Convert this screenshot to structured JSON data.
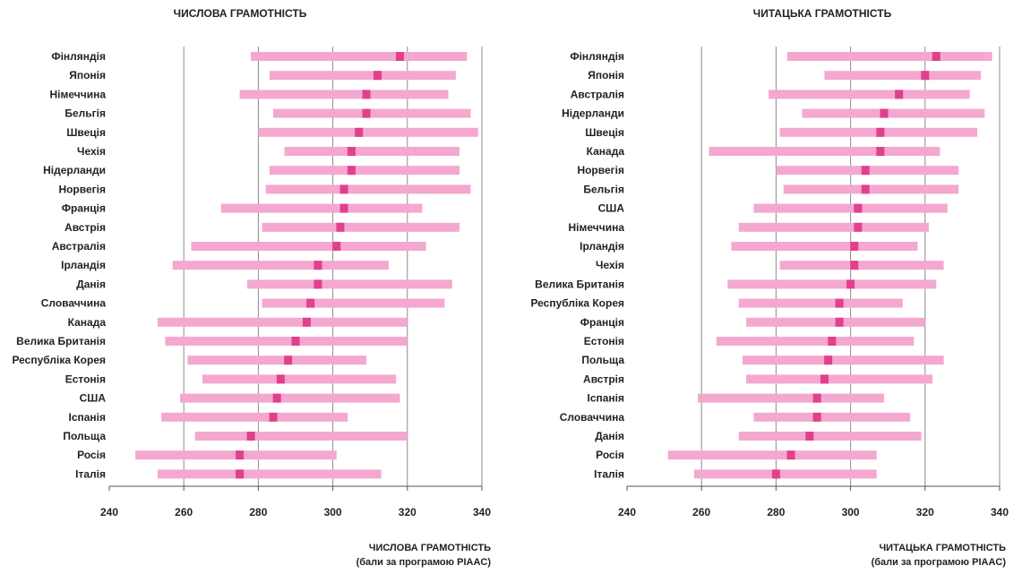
{
  "colors": {
    "range_bar": "#f4a8cf",
    "mean_marker": "#e0408f",
    "grid": "#8c8c8c",
    "axis": "#555555",
    "text": "#222222"
  },
  "chart_data": [
    {
      "type": "bar",
      "orientation": "horizontal",
      "title": "ЧИСЛОВА ГРАМОТНІСТЬ",
      "xlabel": "ЧИСЛОВА ГРАМОТНІСТЬ",
      "xlabel_sub": "(бали за програмою PIAAC)",
      "xlim": [
        240,
        340
      ],
      "xticks": [
        240,
        260,
        280,
        300,
        320,
        340
      ],
      "grid": true,
      "categories": [
        "Фінляндія",
        "Японія",
        "Німеччина",
        "Бельгія",
        "Швеція",
        "Чехія",
        "Нідерланди",
        "Норвегія",
        "Франція",
        "Австрія",
        "Австралія",
        "Ірландія",
        "Данія",
        "Словаччина",
        "Канада",
        "Велика Британія",
        "Республіка Корея",
        "Естонія",
        "США",
        "Іспанія",
        "Польща",
        "Росія",
        "Італія"
      ],
      "series": [
        {
          "name": "",
          "values": [
            [
              278,
              336
            ],
            [
              283,
              333
            ],
            [
              275,
              331
            ],
            [
              284,
              337
            ],
            [
              280,
              339
            ],
            [
              287,
              334
            ],
            [
              283,
              334
            ],
            [
              282,
              337
            ],
            [
              270,
              324
            ],
            [
              281,
              334
            ],
            [
              262,
              325
            ],
            [
              257,
              315
            ],
            [
              277,
              332
            ],
            [
              281,
              330
            ],
            [
              253,
              320
            ],
            [
              255,
              320
            ],
            [
              261,
              309
            ],
            [
              265,
              317
            ],
            [
              259,
              318
            ],
            [
              254,
              304
            ],
            [
              263,
              320
            ],
            [
              247,
              301
            ],
            [
              253,
              313
            ]
          ]
        },
        {
          "name": "",
          "values": [
            318,
            312,
            309,
            309,
            307,
            305,
            305,
            303,
            303,
            302,
            301,
            296,
            296,
            294,
            293,
            290,
            288,
            286,
            285,
            284,
            278,
            275,
            275
          ]
        }
      ]
    },
    {
      "type": "bar",
      "orientation": "horizontal",
      "title": "ЧИТАЦЬКА ГРАМОТНІСТЬ",
      "xlabel": "ЧИТАЦЬКА ГРАМОТНІСТЬ",
      "xlabel_sub": "(бали за програмою PIAAC)",
      "xlim": [
        240,
        340
      ],
      "xticks": [
        240,
        260,
        280,
        300,
        320,
        340
      ],
      "grid": true,
      "categories": [
        "Фінляндія",
        "Японія",
        "Австралія",
        "Нідерланди",
        "Швеція",
        "Канада",
        "Норвегія",
        "Бельгія",
        "США",
        "Німеччина",
        "Ірландія",
        "Чехія",
        "Велика Британія",
        "Республіка Корея",
        "Франція",
        "Естонія",
        "Польща",
        "Австрія",
        "Іспанія",
        "Словаччина",
        "Данія",
        "Росія",
        "Італія"
      ],
      "series": [
        {
          "name": "",
          "values": [
            [
              283,
              338
            ],
            [
              293,
              335
            ],
            [
              278,
              332
            ],
            [
              287,
              336
            ],
            [
              281,
              334
            ],
            [
              262,
              324
            ],
            [
              280,
              329
            ],
            [
              282,
              329
            ],
            [
              274,
              326
            ],
            [
              270,
              321
            ],
            [
              268,
              318
            ],
            [
              281,
              325
            ],
            [
              267,
              323
            ],
            [
              270,
              314
            ],
            [
              272,
              320
            ],
            [
              264,
              317
            ],
            [
              271,
              325
            ],
            [
              272,
              322
            ],
            [
              259,
              309
            ],
            [
              274,
              316
            ],
            [
              270,
              319
            ],
            [
              251,
              307
            ],
            [
              258,
              307
            ]
          ]
        },
        {
          "name": "",
          "values": [
            323,
            320,
            313,
            309,
            308,
            308,
            304,
            304,
            302,
            302,
            301,
            301,
            300,
            297,
            297,
            295,
            294,
            293,
            291,
            291,
            289,
            284,
            280
          ]
        }
      ]
    }
  ]
}
